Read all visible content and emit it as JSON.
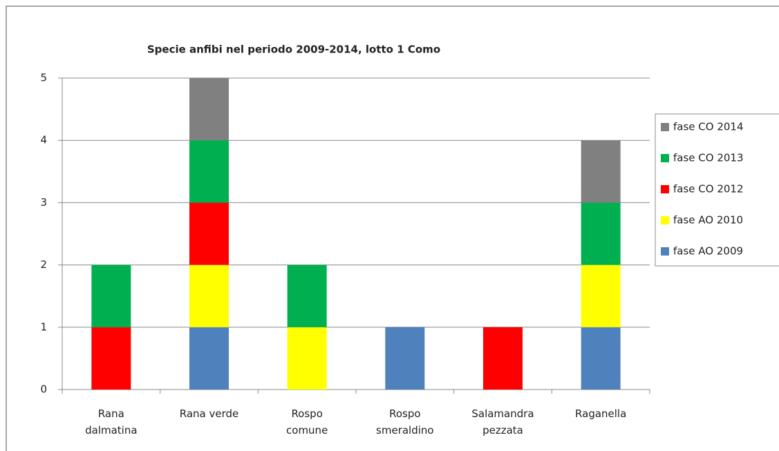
{
  "chart_data": {
    "type": "stacked_bar",
    "title": "Specie anfibi nel periodo 2009-2014, lotto 1 Como",
    "categories": [
      "Rana\ndalmatina",
      "Rana verde",
      "Rospo\ncomune",
      "Rospo\nsmeraldino",
      "Salamandra\npezzata",
      "Raganella"
    ],
    "series": [
      {
        "name": "fase AO 2009",
        "color": "#4f81bd",
        "values": [
          0,
          1,
          0,
          1,
          0,
          1
        ]
      },
      {
        "name": "fase AO 2010",
        "color": "#ffff00",
        "values": [
          0,
          1,
          1,
          0,
          0,
          1
        ]
      },
      {
        "name": "fase CO 2012",
        "color": "#ff0000",
        "values": [
          1,
          1,
          0,
          0,
          1,
          0
        ]
      },
      {
        "name": "fase CO 2013",
        "color": "#00b050",
        "values": [
          1,
          1,
          1,
          0,
          0,
          1
        ]
      },
      {
        "name": "fase CO 2014",
        "color": "#808080",
        "values": [
          0,
          1,
          0,
          0,
          0,
          1
        ]
      }
    ],
    "ylim": [
      0,
      5
    ],
    "yticks": [
      0,
      1,
      2,
      3,
      4,
      5
    ],
    "grid": true,
    "legend": "right"
  }
}
